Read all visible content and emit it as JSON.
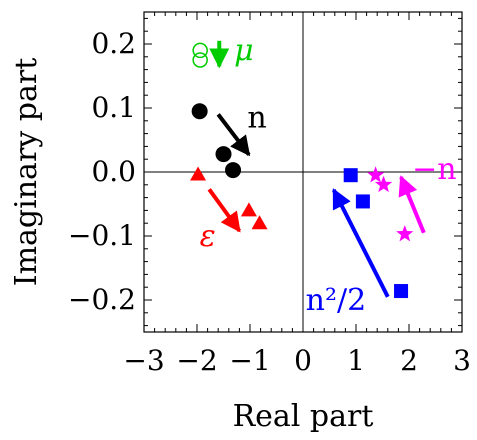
{
  "chart_data": {
    "type": "scatter",
    "xlabel": "Real part",
    "ylabel": "Imaginary part",
    "xlim": [
      -3,
      3
    ],
    "ylim": [
      -0.25,
      0.25
    ],
    "x_ticks": [
      -3,
      -2,
      -1,
      0,
      1,
      2,
      3
    ],
    "y_ticks": [
      -0.2,
      -0.1,
      0.0,
      0.1,
      0.2
    ],
    "x_tick_labels": [
      "−3",
      "−2",
      "−1",
      "0",
      "1",
      "2",
      "3"
    ],
    "y_tick_labels": [
      "−0.2",
      "−0.1",
      "0.0",
      "0.1",
      "0.2"
    ],
    "grid": false,
    "zero_lines": true,
    "series": [
      {
        "label": "μ",
        "color": "#00cc00",
        "marker": "open-circle",
        "points": [
          [
            -1.94,
            0.19
          ],
          [
            -1.94,
            0.175
          ]
        ],
        "arrow": {
          "from": [
            -1.58,
            0.205
          ],
          "to": [
            -1.58,
            0.165
          ]
        },
        "label_at": [
          -1.3,
          0.19
        ]
      },
      {
        "label": "n",
        "color": "#000000",
        "marker": "filled-circle",
        "points": [
          [
            -1.95,
            0.095
          ],
          [
            -1.5,
            0.028
          ],
          [
            -1.32,
            0.003
          ]
        ],
        "arrow": {
          "from": [
            -1.6,
            0.09
          ],
          "to": [
            -1.02,
            0.027
          ]
        },
        "label_at": [
          -1.05,
          0.085
        ]
      },
      {
        "label": "ε",
        "color": "#ff0000",
        "marker": "filled-triangle",
        "points": [
          [
            -1.98,
            -0.004
          ],
          [
            -1.02,
            -0.06
          ],
          [
            -0.82,
            -0.08
          ]
        ],
        "arrow": {
          "from": [
            -1.77,
            -0.027
          ],
          "to": [
            -1.2,
            -0.092
          ]
        },
        "label_at": [
          -1.95,
          -0.1
        ]
      },
      {
        "label": "n²/2",
        "color": "#0000ff",
        "marker": "filled-square",
        "points": [
          [
            0.9,
            -0.005
          ],
          [
            1.13,
            -0.046
          ],
          [
            1.85,
            -0.186
          ]
        ],
        "arrow": {
          "from": [
            1.6,
            -0.195
          ],
          "to": [
            0.58,
            -0.028
          ]
        },
        "label_at": [
          0.05,
          -0.2
        ]
      },
      {
        "label": "−n",
        "color": "#ff00ff",
        "marker": "star",
        "points": [
          [
            1.37,
            -0.005
          ],
          [
            1.52,
            -0.02
          ],
          [
            1.92,
            -0.097
          ]
        ],
        "arrow": {
          "from": [
            2.28,
            -0.095
          ],
          "to": [
            1.85,
            -0.008
          ]
        },
        "label_at": [
          2.06,
          0.005
        ]
      }
    ]
  }
}
